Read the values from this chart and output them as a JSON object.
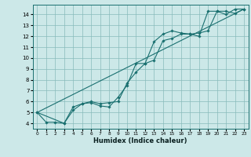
{
  "xlabel": "Humidex (Indice chaleur)",
  "xlim": [
    -0.5,
    23.5
  ],
  "ylim": [
    3.5,
    14.9
  ],
  "yticks": [
    4,
    5,
    6,
    7,
    8,
    9,
    10,
    11,
    12,
    13,
    14
  ],
  "xticks": [
    0,
    1,
    2,
    3,
    4,
    5,
    6,
    7,
    8,
    9,
    10,
    11,
    12,
    13,
    14,
    15,
    16,
    17,
    18,
    19,
    20,
    21,
    22,
    23
  ],
  "bg_color": "#cce8e8",
  "grid_color": "#88bbbb",
  "line_color": "#1a7070",
  "line1_x": [
    0,
    1,
    2,
    3,
    4,
    5,
    6,
    7,
    8,
    9,
    10,
    11,
    12,
    13,
    14,
    15,
    16,
    17,
    18,
    19,
    20,
    21,
    22,
    23
  ],
  "line1_y": [
    5.0,
    4.1,
    4.1,
    4.0,
    5.2,
    5.8,
    5.9,
    5.6,
    5.5,
    6.4,
    7.5,
    9.5,
    9.5,
    11.5,
    12.2,
    12.5,
    12.3,
    12.2,
    12.0,
    14.3,
    14.3,
    14.0,
    14.5,
    14.5
  ],
  "line2_x": [
    0,
    3,
    4,
    5,
    6,
    7,
    8,
    9,
    10,
    11,
    12,
    13,
    14,
    15,
    16,
    17,
    18,
    19,
    20,
    21,
    22,
    23
  ],
  "line2_y": [
    5.0,
    4.0,
    5.5,
    5.8,
    6.0,
    5.8,
    5.9,
    6.0,
    7.7,
    8.7,
    9.5,
    9.8,
    11.6,
    11.8,
    12.2,
    12.2,
    12.3,
    12.5,
    14.3,
    14.3,
    14.1,
    14.5
  ],
  "line3_x": [
    0,
    23
  ],
  "line3_y": [
    5.0,
    14.5
  ],
  "xlabel_fontsize": 6.0,
  "tick_fontsize_x": 4.2,
  "tick_fontsize_y": 5.0
}
